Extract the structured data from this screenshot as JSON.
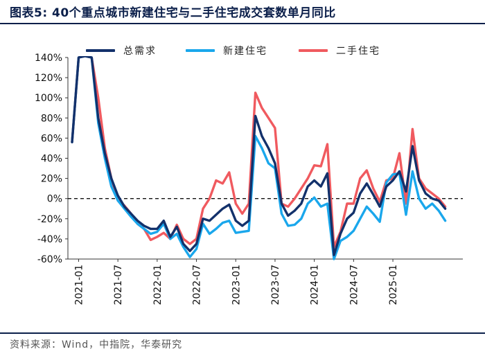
{
  "title": "图表5:  40个重点城市新建住宅与二手住宅成交套数单月同比",
  "source": "资料来源：Wind，中指院，华泰研究",
  "chart_data": {
    "type": "line",
    "ylim": [
      -60,
      140
    ],
    "yticks": [
      -60,
      -40,
      -20,
      0,
      20,
      40,
      60,
      80,
      100,
      120,
      140
    ],
    "ytick_labels": [
      "-60%",
      "-40%",
      "-20%",
      "0%",
      "20%",
      "40%",
      "60%",
      "80%",
      "100%",
      "120%",
      "140%"
    ],
    "x_start": "2020-12",
    "xtick_labels": [
      "2021-01",
      "2021-07",
      "2022-01",
      "2022-07",
      "2023-01",
      "2023-07",
      "2024-01",
      "2024-07",
      "2025-01"
    ],
    "xtick_index": [
      1,
      7,
      13,
      19,
      25,
      31,
      37,
      43,
      49
    ],
    "zero_line": "dashed",
    "series": [
      {
        "name": "总需求",
        "color": "#13316b",
        "values": [
          56,
          140,
          null,
          140,
          80,
          45,
          20,
          3,
          -8,
          -15,
          -22,
          -27,
          -30,
          -30,
          -22,
          -38,
          -28,
          -45,
          -52,
          -45,
          -20,
          -22,
          -16,
          -10,
          -6,
          -22,
          -27,
          -22,
          82,
          62,
          50,
          35,
          -5,
          -17,
          -12,
          -5,
          12,
          18,
          12,
          25,
          -56,
          -35,
          -20,
          -14,
          5,
          15,
          4,
          -8,
          12,
          18,
          27,
          7,
          52,
          18,
          5,
          0,
          -2,
          -10
        ]
      },
      {
        "name": "新建住宅",
        "color": "#1aa7ec",
        "values": [
          56,
          140,
          null,
          140,
          75,
          40,
          12,
          -2,
          -10,
          -18,
          -25,
          -30,
          -35,
          -33,
          -25,
          -40,
          -35,
          -48,
          -58,
          -50,
          -25,
          -35,
          -30,
          -24,
          -22,
          -34,
          -33,
          -32,
          62,
          50,
          35,
          30,
          -15,
          -27,
          -26,
          -20,
          -5,
          1,
          -8,
          -5,
          -62,
          -42,
          -38,
          -32,
          -20,
          -8,
          -15,
          -23,
          16,
          24,
          25,
          -16,
          27,
          0,
          -10,
          -5,
          -12,
          -22
        ]
      },
      {
        "name": "二手住宅",
        "color": "#f05a5f",
        "values": [
          56,
          140,
          null,
          140,
          100,
          50,
          20,
          -2,
          -7,
          -15,
          -25,
          -30,
          -41,
          -38,
          -34,
          -40,
          -26,
          -40,
          -45,
          -40,
          -10,
          0,
          18,
          15,
          26,
          -5,
          -15,
          -5,
          105,
          90,
          80,
          70,
          -5,
          -8,
          0,
          10,
          20,
          33,
          32,
          54,
          -48,
          -33,
          -5,
          -5,
          20,
          28,
          10,
          -3,
          18,
          20,
          45,
          -5,
          69,
          20,
          10,
          5,
          0,
          -8
        ]
      }
    ]
  }
}
